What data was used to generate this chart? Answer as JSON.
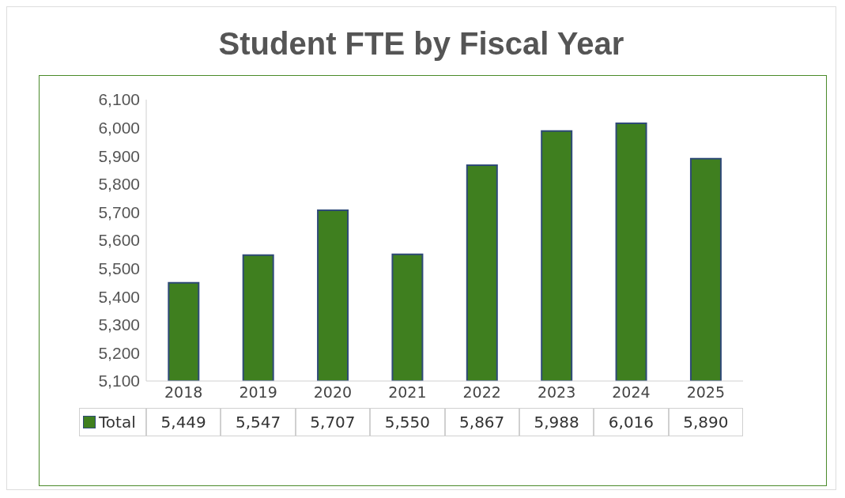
{
  "chart_data": {
    "type": "bar",
    "title": "Student FTE by Fiscal Year",
    "categories": [
      "2018",
      "2019",
      "2020",
      "2021",
      "2022",
      "2023",
      "2024",
      "2025"
    ],
    "series": [
      {
        "name": "Total",
        "color": "#3f7f1f",
        "values": [
          5449,
          5547,
          5707,
          5550,
          5867,
          5988,
          6016,
          5890
        ],
        "value_labels": [
          "5,449",
          "5,547",
          "5,707",
          "5,550",
          "5,867",
          "5,988",
          "6,016",
          "5,890"
        ]
      }
    ],
    "ylim": [
      5100,
      6100
    ],
    "yticks": [
      {
        "value": 5100,
        "label": "5,100"
      },
      {
        "value": 5200,
        "label": "5,200"
      },
      {
        "value": 5300,
        "label": "5,300"
      },
      {
        "value": 5400,
        "label": "5,400"
      },
      {
        "value": 5500,
        "label": "5,500"
      },
      {
        "value": 5600,
        "label": "5,600"
      },
      {
        "value": 5700,
        "label": "5,700"
      },
      {
        "value": 5800,
        "label": "5,800"
      },
      {
        "value": 5900,
        "label": "5,900"
      },
      {
        "value": 6000,
        "label": "6,000"
      },
      {
        "value": 6100,
        "label": "6,100"
      }
    ],
    "legend": "bottom"
  }
}
